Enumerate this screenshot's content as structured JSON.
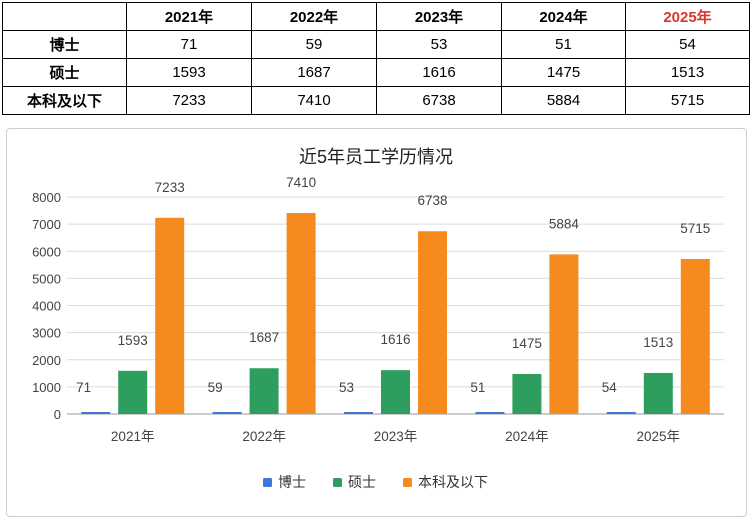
{
  "table": {
    "corner": "",
    "headers": [
      "2021年",
      "2022年",
      "2023年",
      "2024年",
      "2025年"
    ],
    "rows": [
      {
        "label": "博士",
        "cells": [
          "71",
          "59",
          "53",
          "51",
          "54"
        ]
      },
      {
        "label": "硕士",
        "cells": [
          "1593",
          "1687",
          "1616",
          "1475",
          "1513"
        ]
      },
      {
        "label": "本科及以下",
        "cells": [
          "7233",
          "7410",
          "6738",
          "5884",
          "5715"
        ]
      }
    ],
    "accent_color": "#d9372b"
  },
  "chart_data": {
    "type": "bar",
    "title": "近5年员工学历情况",
    "categories": [
      "2021年",
      "2022年",
      "2023年",
      "2024年",
      "2025年"
    ],
    "series": [
      {
        "name": "博士",
        "values": [
          71,
          59,
          53,
          51,
          54
        ],
        "color": "#3b78d8"
      },
      {
        "name": "硕士",
        "values": [
          1593,
          1687,
          1616,
          1475,
          1513
        ],
        "color": "#2e9e5e"
      },
      {
        "name": "本科及以下",
        "values": [
          7233,
          7410,
          6738,
          5884,
          5715
        ],
        "color": "#f58b1f"
      }
    ],
    "ylim": [
      0,
      8000
    ],
    "yticks": [
      "0",
      "1000",
      "2000",
      "3000",
      "4000",
      "5000",
      "6000",
      "7000",
      "8000"
    ],
    "xlabel": "",
    "ylabel": "",
    "grid": true,
    "legend": "bottom",
    "data_labels": true
  }
}
